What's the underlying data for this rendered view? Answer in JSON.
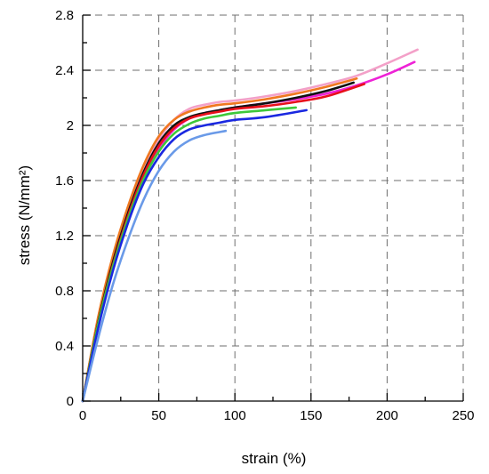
{
  "chart_data": {
    "type": "line",
    "title": "",
    "xlabel": "strain (%)",
    "ylabel": "stress (N/mm²)",
    "xlim": [
      0,
      250
    ],
    "ylim": [
      0,
      2.8
    ],
    "xticks": [
      0,
      50,
      100,
      150,
      200,
      250
    ],
    "yticks": [
      0,
      0.4,
      0.8,
      1.2,
      1.6,
      2,
      2.4,
      2.8
    ],
    "x_tick_labels": [
      "0",
      "50",
      "100",
      "150",
      "200",
      "250"
    ],
    "y_tick_labels": [
      "0",
      "0.4",
      "0.8",
      "1.2",
      "1.6",
      "2",
      "2.4",
      "2.8"
    ],
    "grid": true,
    "legend": "none",
    "series": [
      {
        "color": "#f3a0c8",
        "x": [
          0,
          10,
          20,
          30,
          40,
          50,
          60,
          70,
          80,
          90,
          100,
          120,
          140,
          160,
          180,
          200,
          220
        ],
        "y": [
          0,
          0.58,
          1.02,
          1.38,
          1.68,
          1.9,
          2.04,
          2.12,
          2.15,
          2.17,
          2.18,
          2.21,
          2.25,
          2.3,
          2.36,
          2.45,
          2.55
        ]
      },
      {
        "color": "#ee22d6",
        "x": [
          0,
          10,
          20,
          30,
          40,
          50,
          60,
          70,
          80,
          90,
          100,
          120,
          140,
          160,
          180,
          200,
          218
        ],
        "y": [
          0,
          0.54,
          0.98,
          1.33,
          1.62,
          1.83,
          1.97,
          2.05,
          2.09,
          2.11,
          2.13,
          2.16,
          2.19,
          2.23,
          2.29,
          2.37,
          2.46
        ]
      },
      {
        "color": "#f07820",
        "x": [
          0,
          10,
          20,
          30,
          40,
          50,
          60,
          70,
          80,
          90,
          100,
          120,
          140,
          160,
          180
        ],
        "y": [
          0,
          0.6,
          1.06,
          1.42,
          1.71,
          1.92,
          2.04,
          2.1,
          2.13,
          2.15,
          2.16,
          2.19,
          2.23,
          2.28,
          2.34
        ]
      },
      {
        "color": "#111111",
        "x": [
          0,
          10,
          20,
          30,
          40,
          50,
          60,
          70,
          80,
          90,
          100,
          120,
          140,
          160,
          178
        ],
        "y": [
          0,
          0.56,
          1.01,
          1.37,
          1.66,
          1.87,
          2.0,
          2.06,
          2.09,
          2.11,
          2.13,
          2.16,
          2.2,
          2.25,
          2.31
        ]
      },
      {
        "color": "#e8101c",
        "x": [
          0,
          10,
          20,
          30,
          40,
          50,
          60,
          70,
          80,
          90,
          100,
          120,
          140,
          160,
          185
        ],
        "y": [
          0,
          0.55,
          0.99,
          1.35,
          1.64,
          1.85,
          1.98,
          2.05,
          2.08,
          2.1,
          2.12,
          2.14,
          2.17,
          2.21,
          2.3
        ]
      },
      {
        "color": "#3ec83a",
        "x": [
          0,
          10,
          20,
          30,
          40,
          50,
          60,
          70,
          80,
          90,
          100,
          120,
          140
        ],
        "y": [
          0,
          0.55,
          0.98,
          1.33,
          1.61,
          1.81,
          1.94,
          2.01,
          2.05,
          2.07,
          2.09,
          2.11,
          2.13
        ]
      },
      {
        "color": "#1a28e0",
        "x": [
          0,
          10,
          20,
          30,
          40,
          50,
          60,
          70,
          80,
          90,
          100,
          120,
          147
        ],
        "y": [
          0,
          0.52,
          0.95,
          1.3,
          1.58,
          1.77,
          1.9,
          1.97,
          2.0,
          2.02,
          2.04,
          2.06,
          2.11
        ]
      },
      {
        "color": "#6a9ae8",
        "x": [
          0,
          10,
          20,
          30,
          40,
          50,
          60,
          70,
          80,
          94
        ],
        "y": [
          0,
          0.45,
          0.85,
          1.18,
          1.46,
          1.67,
          1.81,
          1.89,
          1.93,
          1.96
        ]
      }
    ]
  }
}
